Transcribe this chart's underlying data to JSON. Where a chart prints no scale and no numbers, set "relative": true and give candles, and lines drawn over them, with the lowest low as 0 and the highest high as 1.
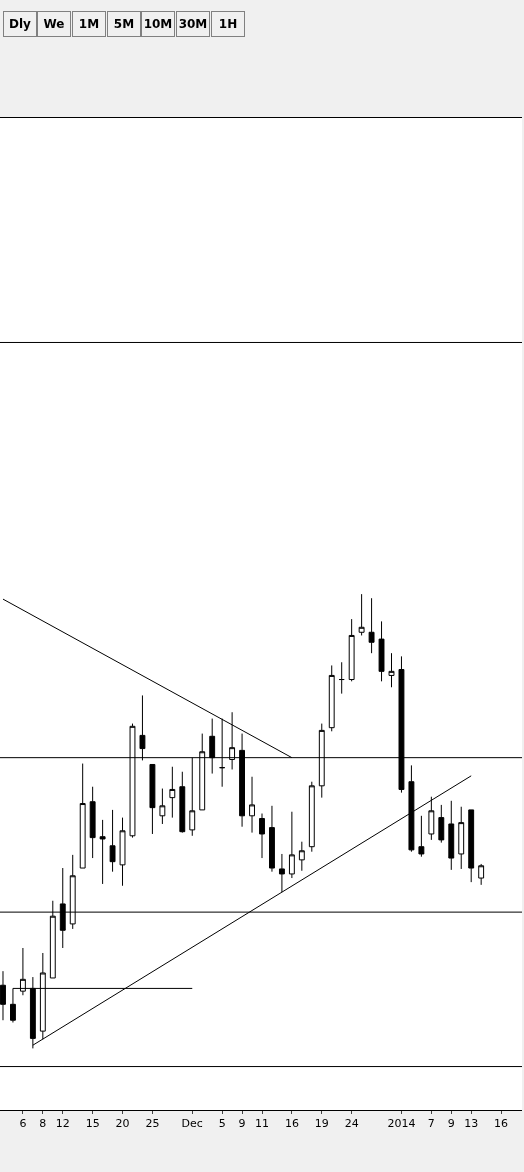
{
  "chart_data": {
    "type": "candlestick",
    "relative": true,
    "tick_labels": "x",
    "annotations": [
      "Dly",
      "We",
      "1M",
      "5M",
      "10M",
      "30M",
      "1H"
    ],
    "categories": [
      null,
      null,
      "6",
      null,
      "8",
      null,
      "12",
      null,
      null,
      "15",
      null,
      null,
      "20",
      null,
      null,
      "25",
      null,
      null,
      null,
      "Dec",
      null,
      null,
      "5",
      null,
      "9",
      null,
      "11",
      null,
      null,
      "16",
      null,
      null,
      "19",
      null,
      null,
      "24",
      null,
      null,
      null,
      null,
      "2014",
      null,
      null,
      "7",
      null,
      "9",
      null,
      "13",
      null,
      null,
      "16"
    ],
    "ohlc": [
      [
        0.139,
        0.17,
        0.062,
        0.097
      ],
      [
        0.097,
        0.132,
        0.057,
        0.062
      ],
      [
        0.126,
        0.221,
        0.117,
        0.152
      ],
      [
        0.132,
        0.157,
        0,
        0.022
      ],
      [
        0.038,
        0.21,
        0.02,
        0.166
      ],
      [
        0.155,
        0.325,
        0.155,
        0.291
      ],
      [
        0.318,
        0.397,
        0.221,
        0.26
      ],
      [
        0.274,
        0.426,
        0.263,
        0.38
      ],
      [
        0.397,
        0.627,
        0.397,
        0.539
      ],
      [
        0.543,
        0.576,
        0.419,
        0.464
      ],
      [
        0.466,
        0.503,
        0.362,
        0.461
      ],
      [
        0.446,
        0.525,
        0.389,
        0.411
      ],
      [
        0.404,
        0.508,
        0.358,
        0.479
      ],
      [
        0.468,
        0.715,
        0.464,
        0.709
      ],
      [
        0.689,
        0.777,
        0.634,
        0.66
      ],
      [
        0.625,
        0.625,
        0.472,
        0.53
      ],
      [
        0.512,
        0.572,
        0.494,
        0.534
      ],
      [
        0.552,
        0.62,
        0.508,
        0.57
      ],
      [
        0.576,
        0.609,
        0.475,
        0.477
      ],
      [
        0.481,
        0.64,
        0.468,
        0.523
      ],
      [
        0.525,
        0.693,
        0.525,
        0.653
      ],
      [
        0.687,
        0.726,
        0.605,
        0.64
      ],
      [
        0.618,
        0.726,
        0.576,
        0.618
      ],
      [
        0.636,
        0.74,
        0.614,
        0.662
      ],
      [
        0.656,
        0.693,
        0.488,
        0.512
      ],
      [
        0.512,
        0.598,
        0.475,
        0.536
      ],
      [
        0.506,
        0.517,
        0.419,
        0.472
      ],
      [
        0.486,
        0.534,
        0.389,
        0.397
      ],
      [
        0.395,
        0.428,
        0.344,
        0.384
      ],
      [
        0.384,
        0.521,
        0.375,
        0.426
      ],
      [
        0.415,
        0.455,
        0.391,
        0.435
      ],
      [
        0.444,
        0.587,
        0.433,
        0.578
      ],
      [
        0.578,
        0.715,
        0.552,
        0.7
      ],
      [
        0.706,
        0.843,
        0.698,
        0.821
      ],
      [
        0.812,
        0.85,
        0.781,
        0.812
      ],
      [
        0.812,
        0.945,
        0.808,
        0.909
      ],
      [
        0.916,
        1,
        0.909,
        0.927
      ],
      [
        0.916,
        0.991,
        0.87,
        0.894
      ],
      [
        0.901,
        0.94,
        0.808,
        0.83
      ],
      [
        0.821,
        0.87,
        0.795,
        0.83
      ],
      [
        0.834,
        0.863,
        0.563,
        0.57
      ],
      [
        0.587,
        0.623,
        0.433,
        0.437
      ],
      [
        0.444,
        0.512,
        0.422,
        0.428
      ],
      [
        0.472,
        0.554,
        0.459,
        0.523
      ],
      [
        0.508,
        0.536,
        0.453,
        0.459
      ],
      [
        0.494,
        0.545,
        0.393,
        0.419
      ],
      [
        0.428,
        0.532,
        0.395,
        0.497
      ],
      [
        0.525,
        0.525,
        0.366,
        0.397
      ],
      [
        0.375,
        0.406,
        0.36,
        0.402
      ],
      null,
      null
    ],
    "series": [
      {
        "type": "line",
        "color": "#000000",
        "values": [
          0.989,
          null,
          null,
          null,
          null,
          null,
          null,
          null,
          null,
          null,
          null,
          null,
          null,
          null,
          null,
          null,
          null,
          null,
          null,
          null,
          null,
          null,
          null,
          null,
          null,
          null,
          null,
          null,
          null,
          0.64,
          null,
          null,
          null,
          null,
          null,
          null,
          null,
          null,
          null,
          null,
          null,
          null,
          null,
          null,
          null,
          null,
          null,
          null,
          null,
          null,
          null
        ]
      },
      {
        "type": "line",
        "color": "#000000",
        "values": [
          null,
          null,
          null,
          0.007,
          null,
          null,
          null,
          null,
          null,
          null,
          null,
          null,
          null,
          null,
          null,
          null,
          null,
          null,
          null,
          null,
          null,
          null,
          null,
          null,
          null,
          null,
          null,
          null,
          null,
          null,
          null,
          null,
          null,
          null,
          null,
          null,
          null,
          null,
          null,
          null,
          null,
          null,
          null,
          null,
          null,
          null,
          null,
          0.6,
          null,
          null,
          null
        ]
      },
      {
        "type": "line",
        "color": "#000000",
        "values": [
          null,
          0.132,
          null,
          null,
          null,
          null,
          null,
          null,
          null,
          null,
          null,
          null,
          null,
          null,
          null,
          null,
          null,
          null,
          null,
          0.132,
          null,
          null,
          null,
          null,
          null,
          null,
          null,
          null,
          null,
          null,
          null,
          null,
          null,
          null,
          null,
          null,
          null,
          null,
          null,
          null,
          null,
          null,
          null,
          null,
          null,
          null,
          null,
          null,
          null,
          null,
          null
        ]
      }
    ],
    "ref_lines": [
      {
        "axis": "y",
        "value": 1.554,
        "color": "#000000"
      },
      {
        "axis": "y",
        "value": 0.64,
        "color": "#000000"
      },
      {
        "axis": "y",
        "value": 0.3,
        "color": "#000000"
      },
      {
        "axis": "y",
        "value": -0.04,
        "color": "#000000"
      }
    ]
  }
}
